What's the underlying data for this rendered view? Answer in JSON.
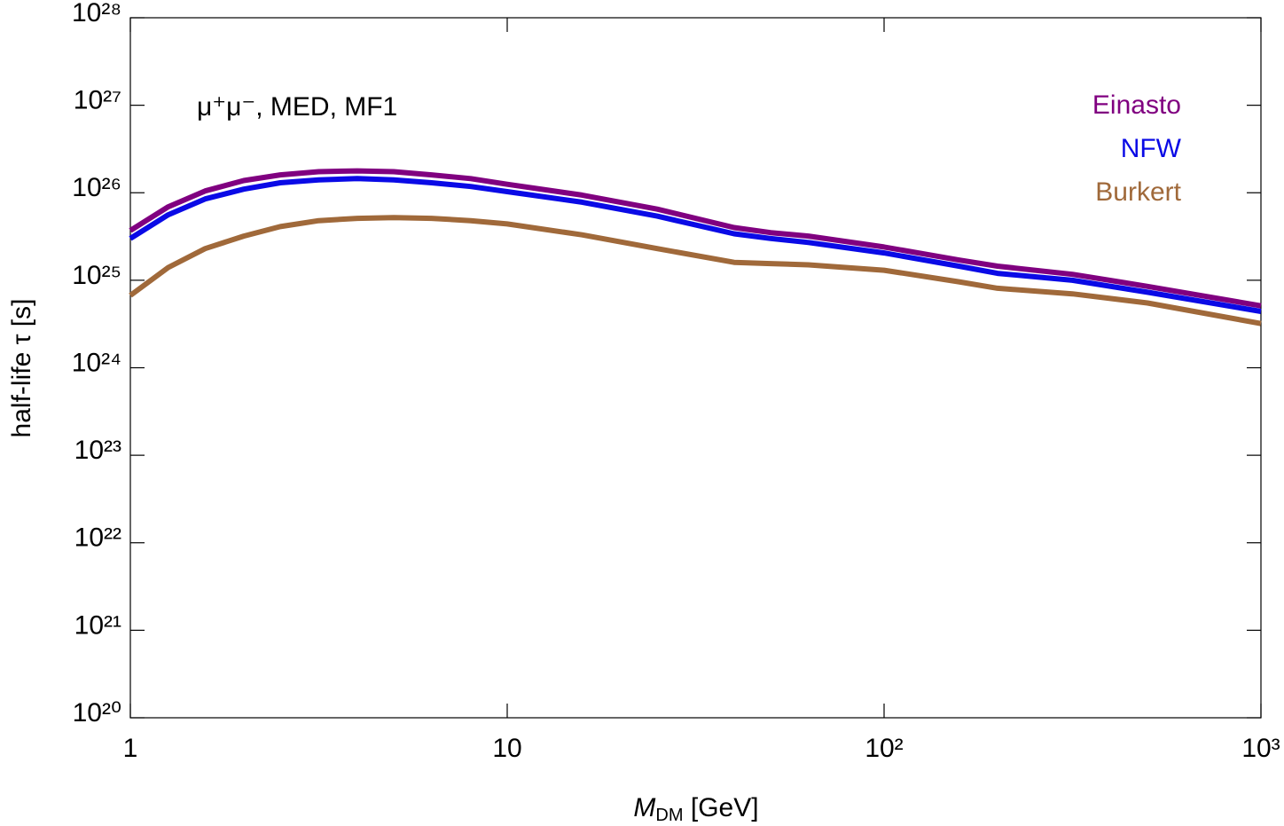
{
  "chart_data": {
    "type": "line",
    "annotation": "μ⁺μ⁻, MED, MF1",
    "xlabel": [
      "M",
      "DM",
      " [GeV]"
    ],
    "ylabel": "half-life τ [s]",
    "xscale": "log",
    "yscale": "log",
    "xlim": [
      1,
      1000
    ],
    "ylim": [
      1e+20,
      1e+28
    ],
    "xticks": [
      1,
      10,
      {
        "value": 100,
        "label": "10²"
      },
      {
        "value": 1000,
        "label": "10³"
      }
    ],
    "yticks": [
      {
        "value": 1e+20,
        "label": "10²⁰"
      },
      {
        "value": 1e+21,
        "label": "10²¹"
      },
      {
        "value": 1e+22,
        "label": "10²²"
      },
      {
        "value": 1e+23,
        "label": "10²³"
      },
      {
        "value": 1e+24,
        "label": "10²⁴"
      },
      {
        "value": 1e+25,
        "label": "10²⁵"
      },
      {
        "value": 1e+26,
        "label": "10²⁶"
      },
      {
        "value": 1e+27,
        "label": "10²⁷"
      },
      {
        "value": 1e+28,
        "label": "10²⁸"
      }
    ],
    "legend": "upper right",
    "x": [
      1,
      1.26,
      1.58,
      2,
      2.5,
      3.16,
      4,
      5,
      6.3,
      8,
      10,
      15.8,
      25,
      40,
      50,
      63,
      100,
      158,
      200,
      316,
      500,
      1000
    ],
    "series": [
      {
        "name": "Einasto",
        "color": "#800080",
        "values": [
          3.7e+25,
          6.9e+25,
          1.05e+26,
          1.38e+26,
          1.6e+26,
          1.74e+26,
          1.78e+26,
          1.74e+26,
          1.6e+26,
          1.45e+26,
          1.25e+26,
          9.4e+25,
          6.5e+25,
          4e+25,
          3.5e+25,
          3.2e+25,
          2.4e+25,
          1.7e+25,
          1.45e+25,
          1.17e+25,
          8.5e+24,
          5.1e+24
        ]
      },
      {
        "name": "NFW",
        "color": "#0a0ae6",
        "values": [
          3e+25,
          5.6e+25,
          8.5e+25,
          1.1e+26,
          1.3e+26,
          1.4e+26,
          1.45e+26,
          1.4e+26,
          1.3e+26,
          1.18e+26,
          1.03e+26,
          7.8e+25,
          5.4e+25,
          3.4e+25,
          3e+25,
          2.7e+25,
          2.05e+25,
          1.45e+25,
          1.2e+25,
          1e+25,
          7.3e+24,
          4.4e+24
        ]
      },
      {
        "name": "Burkert",
        "color": "#a0693a",
        "values": [
          6.7e+24,
          1.4e+25,
          2.3e+25,
          3.2e+25,
          4.1e+25,
          4.8e+25,
          5.1e+25,
          5.2e+25,
          5.1e+25,
          4.8e+25,
          4.4e+25,
          3.3e+25,
          2.3e+25,
          1.6e+25,
          1.55e+25,
          1.5e+25,
          1.3e+25,
          9.6e+24,
          8.1e+24,
          7e+24,
          5.5e+24,
          3.2e+24
        ]
      }
    ]
  }
}
